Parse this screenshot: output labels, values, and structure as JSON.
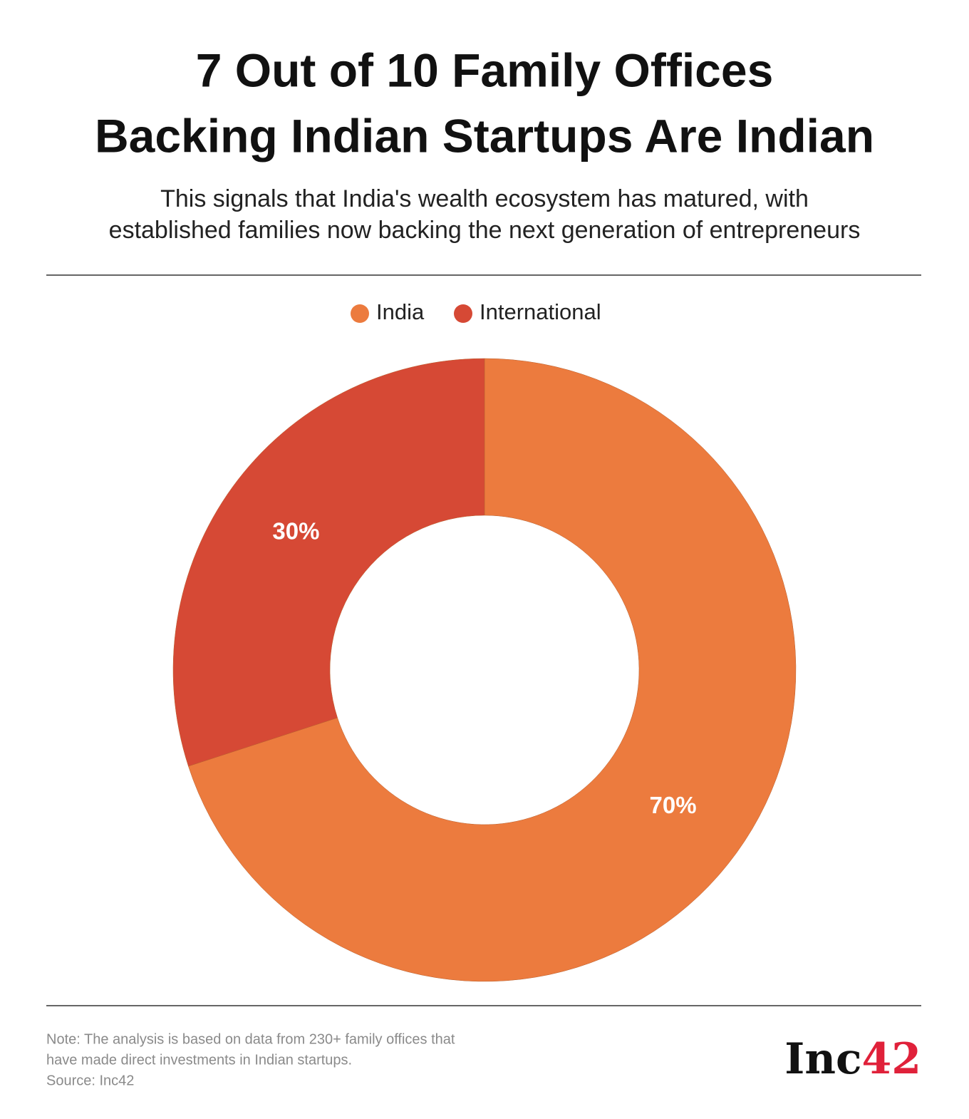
{
  "chart_data": {
    "type": "pie",
    "title": [
      "7 Out of 10 Family Offices",
      "Backing Indian Startups Are Indian"
    ],
    "subtitle": [
      "This signals that India's wealth ecosystem has matured, with",
      "established families now backing the next generation of entrepreneurs"
    ],
    "categories": [
      "India",
      "International"
    ],
    "values": [
      70,
      30
    ],
    "value_labels": [
      "70%",
      "30%"
    ],
    "colors": [
      "#ec7b3e",
      "#d64935"
    ],
    "note": [
      "Note: The analysis is based on data from 230+ family offices that",
      "have made direct investments in Indian startups.",
      "Source: Inc42"
    ],
    "logo": {
      "text": "Inc",
      "accent": "42"
    }
  }
}
